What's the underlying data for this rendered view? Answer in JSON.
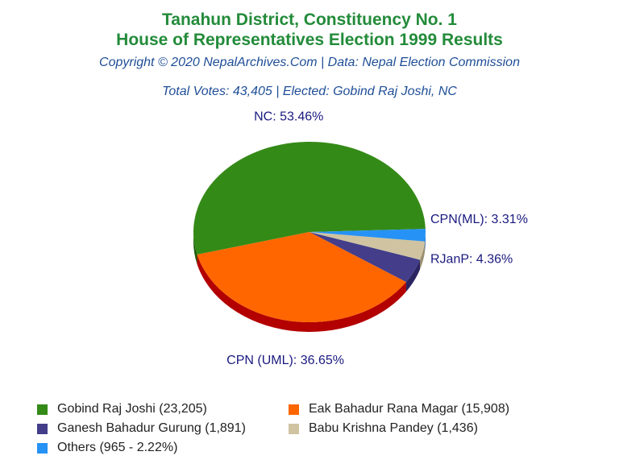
{
  "header": {
    "title_line1": "Tanahun District, Constituency No. 1",
    "title_line2": "House of Representatives Election 1999 Results",
    "copyright": "Copyright © 2020 NepalArchives.Com | Data: Nepal Election Commission",
    "summary": "Total Votes: 43,405 | Elected: Gobind Raj Joshi, NC"
  },
  "chart_data": {
    "type": "pie",
    "slices": [
      {
        "label": "NC: 53.46%",
        "party": "NC",
        "percent": 53.46,
        "color": "#348a17",
        "side_color": "#1e5c0c"
      },
      {
        "label": "CPN (UML): 36.65%",
        "party": "CPN (UML)",
        "percent": 36.65,
        "color": "#ff6600",
        "side_color": "#b30000"
      },
      {
        "label": "RJanP: 4.36%",
        "party": "RJanP",
        "percent": 4.36,
        "color": "#433d8a",
        "side_color": "#2a2560"
      },
      {
        "label": "CPN(ML): 3.31%",
        "party": "CPN(ML)",
        "percent": 3.31,
        "color": "#cfc3a1",
        "side_color": "#9a8f72"
      },
      {
        "label": "",
        "party": "Others",
        "percent": 2.22,
        "color": "#2692f5",
        "side_color": "#1a62a8"
      }
    ]
  },
  "legend": [
    {
      "text": "Gobind Raj Joshi (23,205)",
      "color": "#348a17"
    },
    {
      "text": "Eak Bahadur Rana Magar (15,908)",
      "color": "#ff6600"
    },
    {
      "text": "Ganesh Bahadur Gurung (1,891)",
      "color": "#433d8a"
    },
    {
      "text": "Babu Krishna Pandey (1,436)",
      "color": "#cfc3a1"
    },
    {
      "text": "Others (965 - 2.22%)",
      "color": "#2692f5"
    }
  ]
}
